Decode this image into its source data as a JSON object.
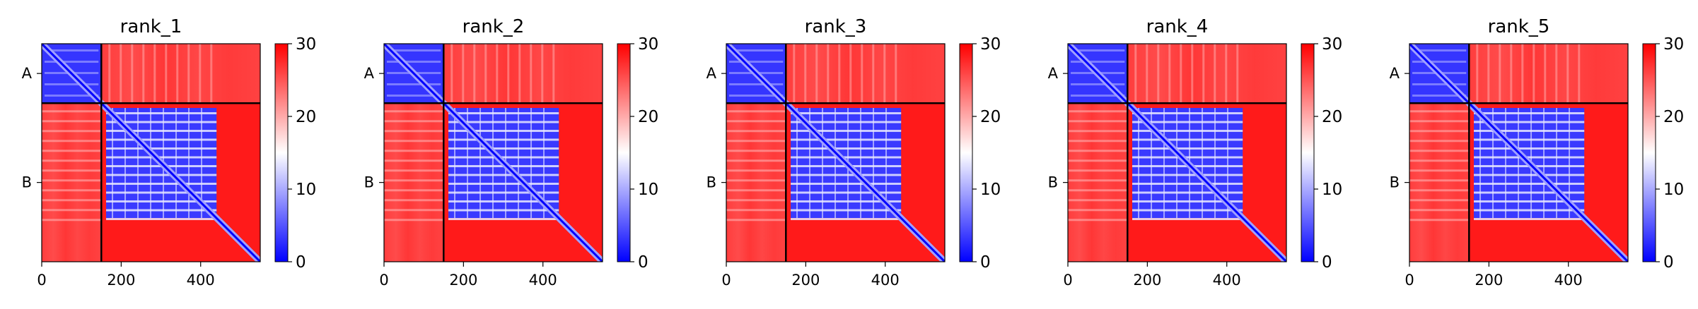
{
  "chart_data": {
    "type": "heatmap",
    "xlim": [
      0,
      550
    ],
    "x_ticks": [
      0,
      200,
      400
    ],
    "chain_boundary": 150,
    "y_ticks": [
      {
        "label": "A",
        "position": 75
      },
      {
        "label": "B",
        "position": 350
      }
    ],
    "colorbar": {
      "min": 0,
      "max": 30,
      "ticks": [
        0,
        10,
        20,
        30
      ]
    },
    "colormap": [
      "#0000ff",
      "#ffffff",
      "#ff0000"
    ],
    "panels": [
      {
        "title": "rank_1"
      },
      {
        "title": "rank_2"
      },
      {
        "title": "rank_3"
      },
      {
        "title": "rank_4"
      },
      {
        "title": "rank_5"
      }
    ]
  }
}
